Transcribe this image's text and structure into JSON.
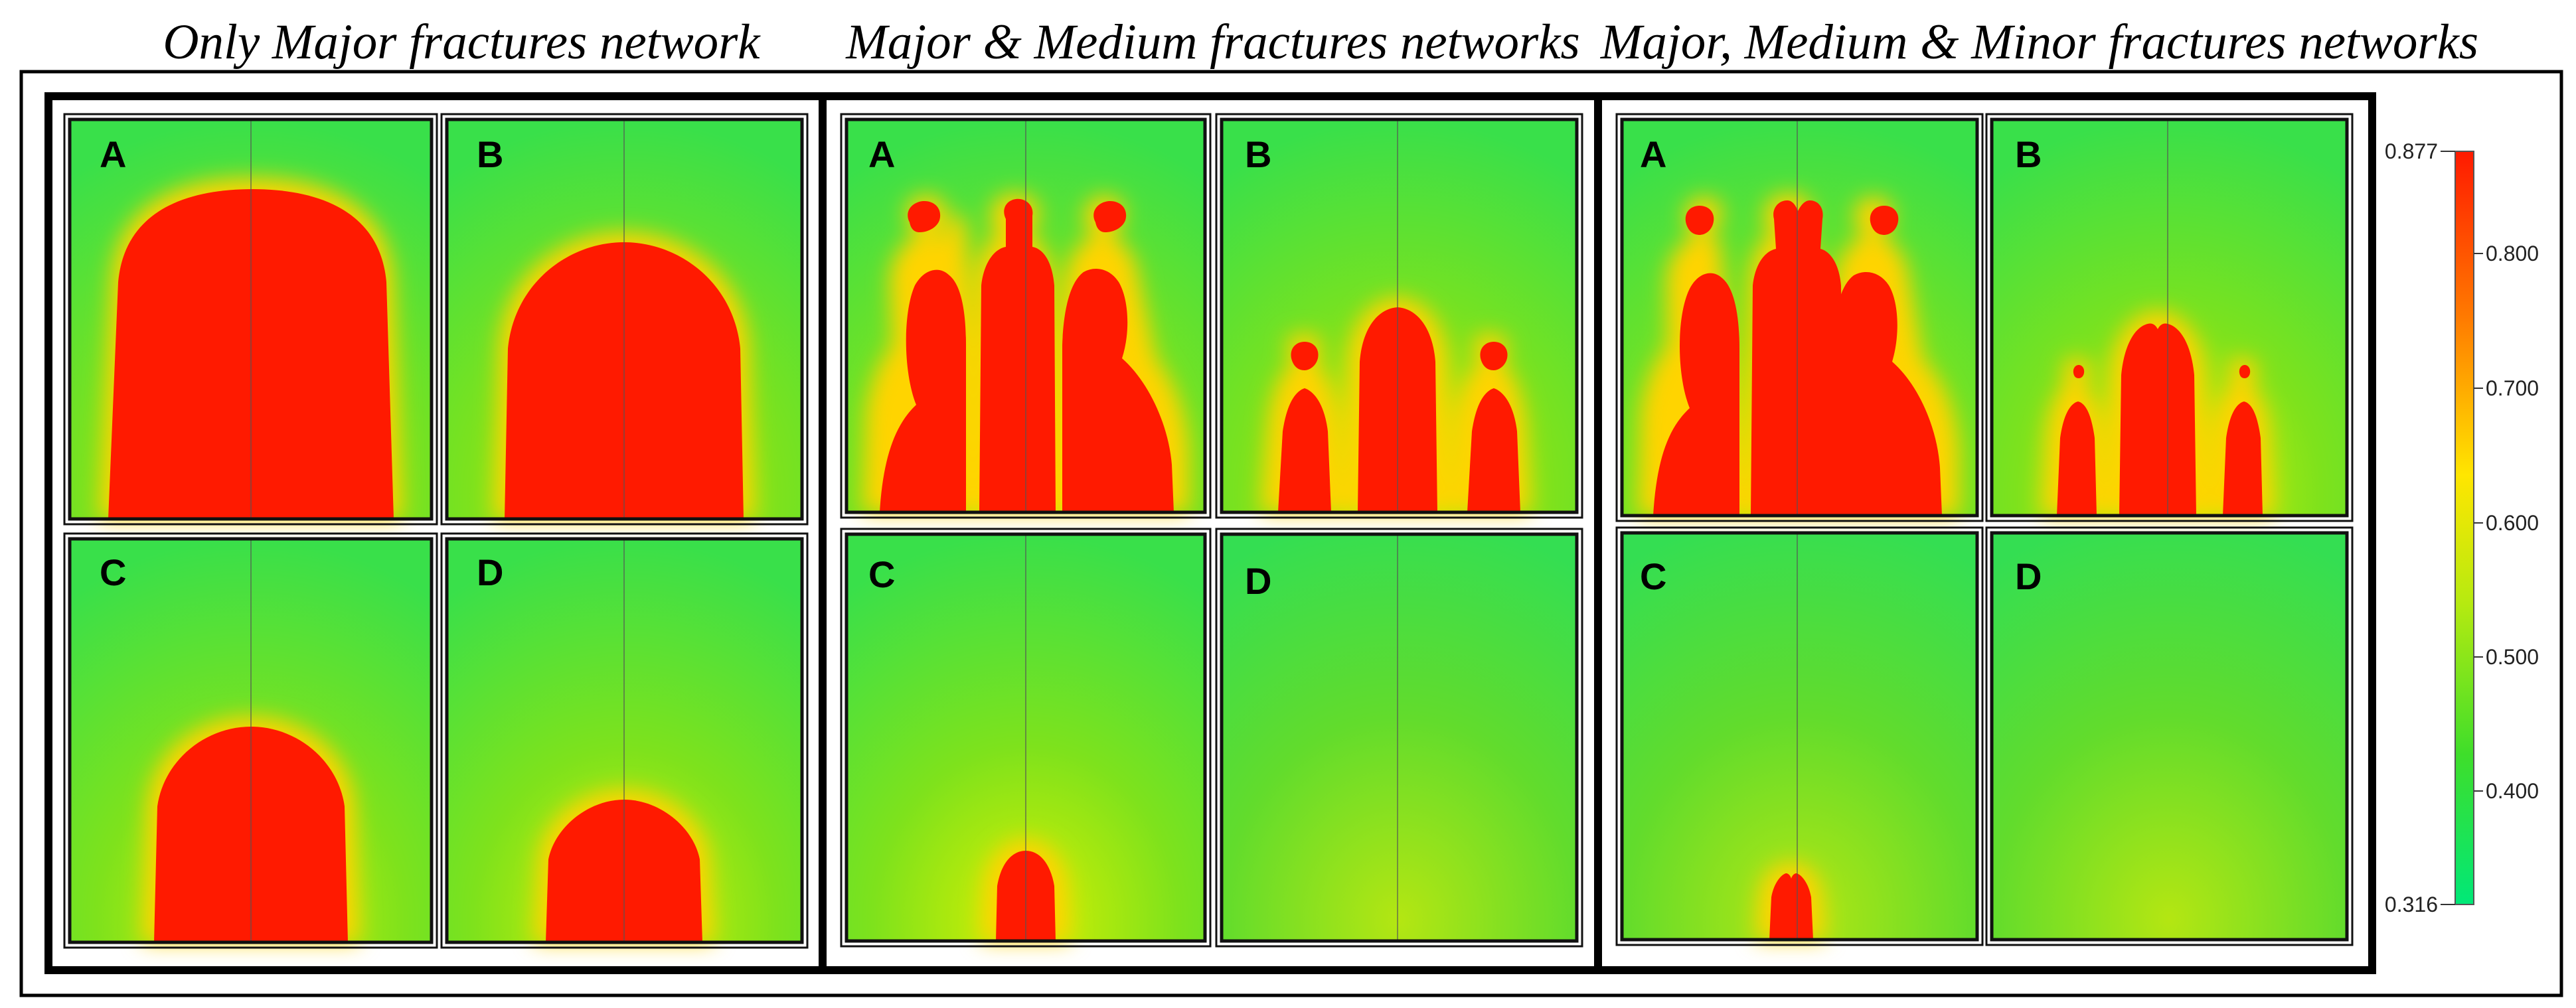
{
  "titles": {
    "t1": "Only Major fractures network",
    "t2": "Major & Medium fractures networks",
    "t3": "Major, Medium & Minor fractures networks"
  },
  "panel_labels": {
    "a": "A",
    "b": "B",
    "c": "C",
    "d": "D"
  },
  "colorbar": {
    "max_label": "0.877",
    "min_label": "0.316",
    "ticks": [
      "0.800",
      "0.700",
      "0.600",
      "0.500",
      "0.400"
    ],
    "colors": {
      "high": "#ff1a00",
      "mid": "#ffee00",
      "low": "#00e85a"
    }
  }
}
